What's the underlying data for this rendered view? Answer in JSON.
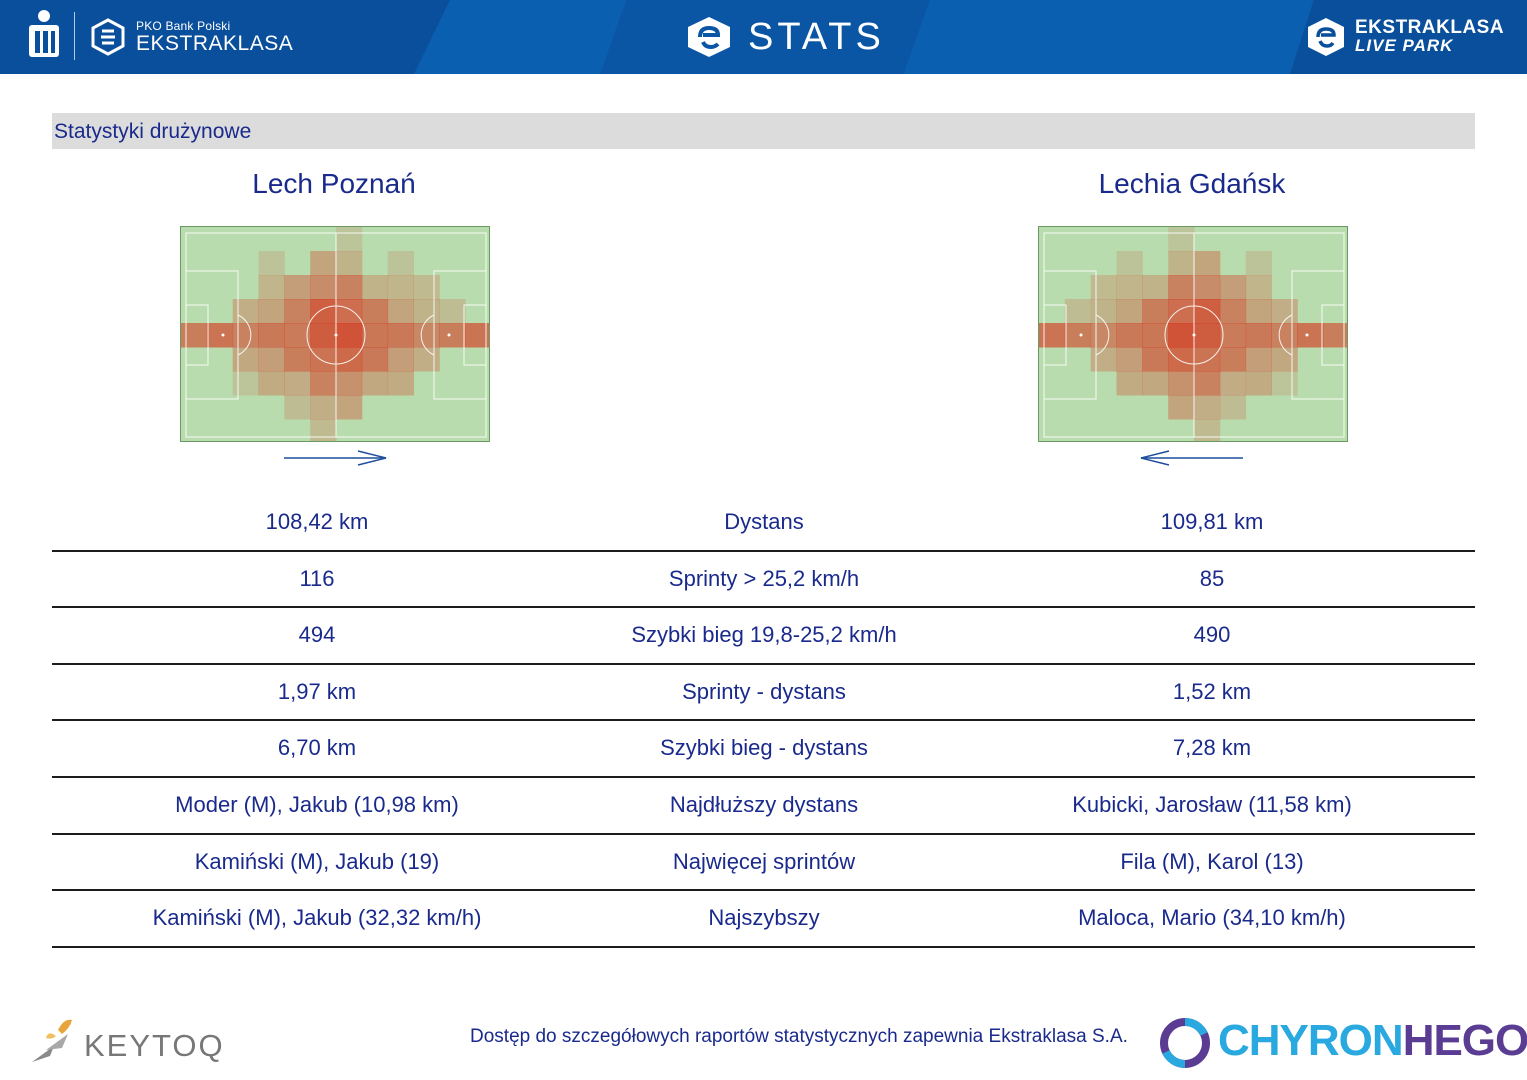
{
  "header": {
    "pko_small": "PKO Bank Polski",
    "league_name": "EKSTRAKLASA",
    "stats_label": "STATS",
    "live_park_line1": "EKSTRAKLASA",
    "live_park_line2": "LIVE PARK"
  },
  "section": {
    "title": "Statystyki drużynowe"
  },
  "teams": {
    "home": {
      "name": "Lech Poznań",
      "attack_direction": "right"
    },
    "away": {
      "name": "Lechia Gdańsk",
      "attack_direction": "left"
    }
  },
  "stats": [
    {
      "home": "108,42 km",
      "label": "Dystans",
      "away": "109,81 km"
    },
    {
      "home": "116",
      "label": "Sprinty > 25,2 km/h",
      "away": "85"
    },
    {
      "home": "494",
      "label": "Szybki bieg 19,8-25,2 km/h",
      "away": "490"
    },
    {
      "home": "1,97 km",
      "label": "Sprinty - dystans",
      "away": "1,52 km"
    },
    {
      "home": "6,70 km",
      "label": "Szybki bieg - dystans",
      "away": "7,28 km"
    },
    {
      "home": "Moder (M), Jakub (10,98 km)",
      "label": "Najdłuższy dystans",
      "away": "Kubicki, Jarosław (11,58 km)"
    },
    {
      "home": "Kamiński (M), Jakub (19)",
      "label": "Najwięcej sprintów",
      "away": "Fila (M), Karol (13)"
    },
    {
      "home": "Kamiński (M), Jakub (32,32 km/h)",
      "label": "Najszybszy",
      "away": "Maloca, Mario (34,10 km/h)"
    }
  ],
  "footer": {
    "keytoq": "KEYTOQ",
    "note": "Dostęp do szczegółowych raportów statystycznych zapewnia Ekstraklasa S.A.",
    "chyron_a": "CHYRON",
    "chyron_b": "HEGO"
  }
}
